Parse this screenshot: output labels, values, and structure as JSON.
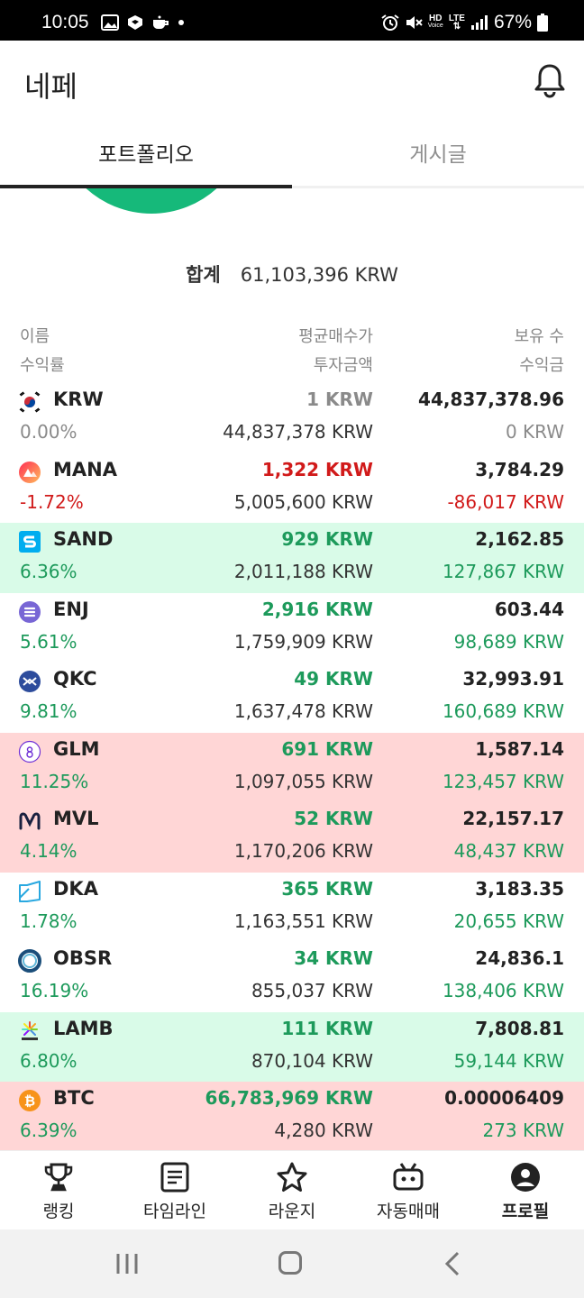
{
  "status_bar": {
    "time": "10:05",
    "battery_text": "67%",
    "network_hd": "HD",
    "network_lte": "LTE",
    "network_voice": "Voice",
    "icons": [
      "image-icon",
      "shield-icon",
      "coffee-icon",
      "alarm-icon",
      "mute-icon",
      "signal-icon",
      "battery-icon"
    ]
  },
  "header": {
    "title": "네페",
    "bell_icon": "bell-icon"
  },
  "tabs": [
    {
      "label": "포트폴리오",
      "active": true
    },
    {
      "label": "게시글",
      "active": false
    }
  ],
  "portfolio": {
    "total_label": "합계",
    "total_value": "61,103,396 KRW",
    "headers": {
      "name": "이름",
      "return": "수익률",
      "avg_price": "평균매수가",
      "invested": "투자금액",
      "quantity": "보유 수",
      "profit": "수익금"
    },
    "rows": [
      {
        "symbol": "KRW",
        "return": "0.00%",
        "avg_price": "1 KRW",
        "invested": "44,837,378 KRW",
        "quantity": "44,837,378.96",
        "profit": "0 KRW",
        "icon": "korea-flag-icon"
      },
      {
        "symbol": "MANA",
        "return": "-1.72%",
        "avg_price": "1,322 KRW",
        "invested": "5,005,600 KRW",
        "quantity": "3,784.29",
        "profit": "-86,017 KRW",
        "icon": "mana-icon"
      },
      {
        "symbol": "SAND",
        "return": "6.36%",
        "avg_price": "929 KRW",
        "invested": "2,011,188 KRW",
        "quantity": "2,162.85",
        "profit": "127,867 KRW",
        "icon": "sand-icon"
      },
      {
        "symbol": "ENJ",
        "return": "5.61%",
        "avg_price": "2,916 KRW",
        "invested": "1,759,909 KRW",
        "quantity": "603.44",
        "profit": "98,689 KRW",
        "icon": "enj-icon"
      },
      {
        "symbol": "QKC",
        "return": "9.81%",
        "avg_price": "49 KRW",
        "invested": "1,637,478 KRW",
        "quantity": "32,993.91",
        "profit": "160,689 KRW",
        "icon": "qkc-icon"
      },
      {
        "symbol": "GLM",
        "return": "11.25%",
        "avg_price": "691 KRW",
        "invested": "1,097,055 KRW",
        "quantity": "1,587.14",
        "profit": "123,457 KRW",
        "icon": "glm-icon"
      },
      {
        "symbol": "MVL",
        "return": "4.14%",
        "avg_price": "52 KRW",
        "invested": "1,170,206 KRW",
        "quantity": "22,157.17",
        "profit": "48,437 KRW",
        "icon": "mvl-icon"
      },
      {
        "symbol": "DKA",
        "return": "1.78%",
        "avg_price": "365 KRW",
        "invested": "1,163,551 KRW",
        "quantity": "3,183.35",
        "profit": "20,655 KRW",
        "icon": "dka-icon"
      },
      {
        "symbol": "OBSR",
        "return": "16.19%",
        "avg_price": "34 KRW",
        "invested": "855,037 KRW",
        "quantity": "24,836.1",
        "profit": "138,406 KRW",
        "icon": "obsr-icon"
      },
      {
        "symbol": "LAMB",
        "return": "6.80%",
        "avg_price": "111 KRW",
        "invested": "870,104 KRW",
        "quantity": "7,808.81",
        "profit": "59,144 KRW",
        "icon": "lamb-icon"
      },
      {
        "symbol": "BTC",
        "return": "6.39%",
        "avg_price": "66,783,969 KRW",
        "invested": "4,280 KRW",
        "quantity": "0.00006409",
        "profit": "273 KRW",
        "icon": "btc-icon"
      }
    ]
  },
  "bottom_nav": [
    {
      "label": "랭킹",
      "icon": "trophy-icon"
    },
    {
      "label": "타임라인",
      "icon": "document-icon"
    },
    {
      "label": "라운지",
      "icon": "star-icon"
    },
    {
      "label": "자동매매",
      "icon": "bot-icon"
    },
    {
      "label": "프로필",
      "icon": "profile-icon"
    }
  ],
  "colors": {
    "accent_green": "#1d9a5b",
    "loss_red": "#d11a1a",
    "row_green_bg": "#d9fbe8",
    "row_red_bg": "#ffd6d6",
    "donut": "#16b97a"
  }
}
